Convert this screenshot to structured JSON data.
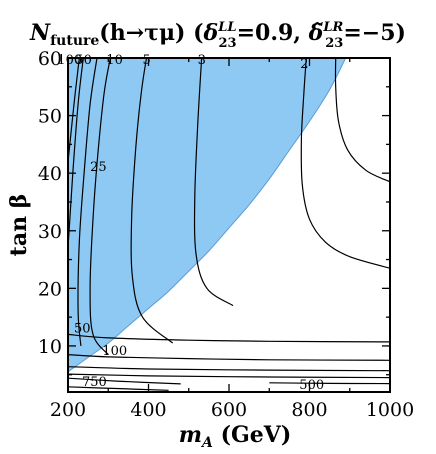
{
  "chart_data": {
    "type": "contour",
    "title": {
      "prefix": "N",
      "prefix_sub": "future",
      "process": "(h→τμ) (",
      "delta1": "δ",
      "delta1_sup": "LL",
      "delta1_sub": "23",
      "delta1_value": "=0.9, ",
      "delta2": "δ̃",
      "delta2_sup": "LR",
      "delta2_sub": "23",
      "delta2_value": "=−5)"
    },
    "xlabel": "m",
    "xlabel_sub": "A",
    "xlabel_unit": " (GeV)",
    "ylabel": "tan β",
    "xlim": [
      200,
      1000
    ],
    "ylim": [
      2,
      60
    ],
    "xticks": [
      200,
      400,
      600,
      800,
      1000
    ],
    "yticks": [
      10,
      20,
      30,
      40,
      50,
      60
    ],
    "colors": {
      "excluded_region": "#8ec9f4",
      "region_edge": "#5a9bd8",
      "contour": "#000000",
      "frame": "#000000"
    },
    "excluded_region_boundary": [
      [
        200,
        5.5
      ],
      [
        250,
        8
      ],
      [
        300,
        10.5
      ],
      [
        350,
        13.5
      ],
      [
        400,
        16.5
      ],
      [
        450,
        19.5
      ],
      [
        500,
        23
      ],
      [
        550,
        26.5
      ],
      [
        600,
        30.5
      ],
      [
        650,
        34.5
      ],
      [
        700,
        39
      ],
      [
        750,
        44
      ],
      [
        800,
        49
      ],
      [
        850,
        54.5
      ],
      [
        890,
        60
      ]
    ],
    "contours": [
      {
        "label": "100",
        "points": [
          [
            200,
            42
          ],
          [
            215,
            52
          ],
          [
            228,
            60
          ]
        ]
      },
      {
        "label": "50",
        "points": [
          [
            200,
            27
          ],
          [
            212,
            40
          ],
          [
            225,
            52
          ],
          [
            238,
            60
          ]
        ]
      },
      {
        "label": "25",
        "points": [
          [
            232,
            10
          ],
          [
            225,
            16
          ],
          [
            228,
            28
          ],
          [
            240,
            40
          ],
          [
            255,
            52
          ],
          [
            272,
            60
          ]
        ]
      },
      {
        "label": "10",
        "points": [
          [
            300,
            8.5
          ],
          [
            262,
            12
          ],
          [
            255,
            20
          ],
          [
            262,
            32
          ],
          [
            275,
            44
          ],
          [
            290,
            54
          ],
          [
            305,
            60
          ]
        ]
      },
      {
        "label": "5",
        "points": [
          [
            460,
            10.5
          ],
          [
            385,
            15
          ],
          [
            360,
            22
          ],
          [
            358,
            32
          ],
          [
            368,
            44
          ],
          [
            382,
            54
          ],
          [
            395,
            60
          ]
        ]
      },
      {
        "label": "3",
        "points": [
          [
            610,
            17
          ],
          [
            545,
            20
          ],
          [
            518,
            26
          ],
          [
            515,
            36
          ],
          [
            522,
            48
          ],
          [
            532,
            60
          ]
        ]
      },
      {
        "label": "2",
        "points": [
          [
            1000,
            23.5
          ],
          [
            900,
            25.5
          ],
          [
            840,
            28
          ],
          [
            800,
            32
          ],
          [
            782,
            38
          ],
          [
            780,
            46
          ],
          [
            786,
            54
          ],
          [
            792,
            60
          ]
        ]
      },
      {
        "label": "",
        "points": [
          [
            1000,
            38.5
          ],
          [
            940,
            40.5
          ],
          [
            895,
            44
          ],
          [
            872,
            49
          ],
          [
            865,
            55
          ],
          [
            865,
            60
          ]
        ]
      },
      {
        "label": "50",
        "points": [
          [
            200,
            12
          ],
          [
            300,
            11.4
          ],
          [
            500,
            11
          ],
          [
            700,
            10.8
          ],
          [
            1000,
            10.7
          ]
        ]
      },
      {
        "label": "100",
        "points": [
          [
            200,
            8.5
          ],
          [
            300,
            8.1
          ],
          [
            500,
            7.8
          ],
          [
            700,
            7.6
          ],
          [
            1000,
            7.5
          ]
        ]
      },
      {
        "label": "",
        "points": [
          [
            200,
            6.4
          ],
          [
            400,
            6
          ],
          [
            700,
            5.8
          ],
          [
            1000,
            5.7
          ]
        ]
      },
      {
        "label": "",
        "points": [
          [
            200,
            5.1
          ],
          [
            400,
            4.8
          ],
          [
            700,
            4.6
          ],
          [
            1000,
            4.5
          ]
        ]
      },
      {
        "label": "750",
        "points": [
          [
            200,
            4.4
          ],
          [
            320,
            3.9
          ],
          [
            480,
            3.4
          ]
        ]
      },
      {
        "label": "500",
        "points": [
          [
            700,
            3.6
          ],
          [
            850,
            3.5
          ],
          [
            1000,
            3.45
          ]
        ]
      },
      {
        "label": "",
        "points": [
          [
            200,
            2.9
          ],
          [
            320,
            2.6
          ],
          [
            450,
            2.3
          ]
        ]
      }
    ]
  }
}
